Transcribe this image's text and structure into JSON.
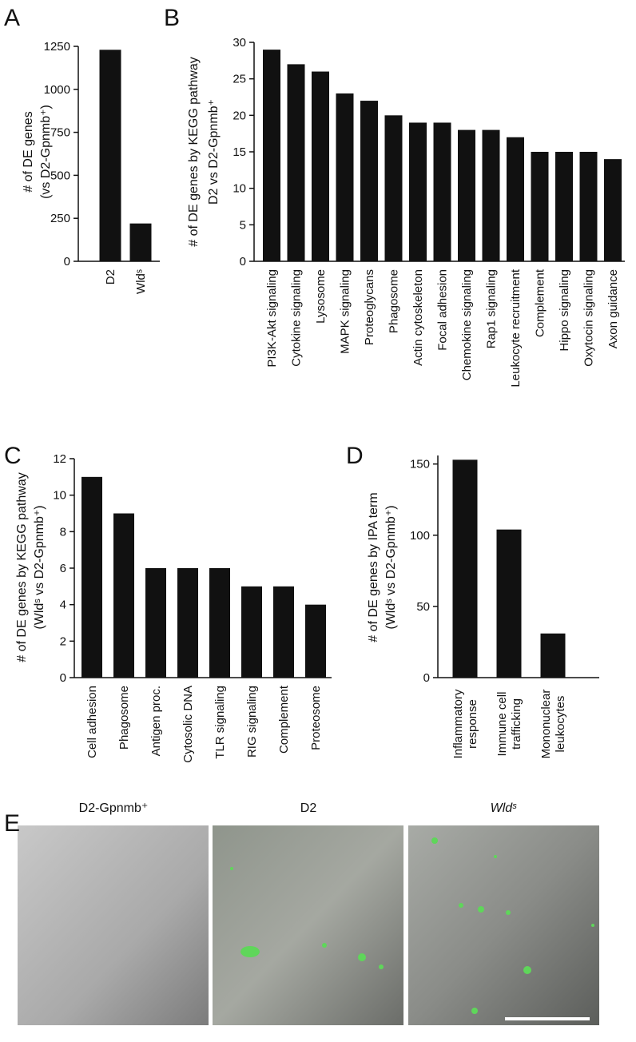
{
  "chart_data": [
    {
      "type": "bar",
      "panel": "A",
      "ylabel": [
        "# of DE genes",
        "(vs D2-Gpnmb⁺)"
      ],
      "categories": [
        [
          "D2"
        ],
        [
          "Wldˢ"
        ]
      ],
      "values": [
        1230,
        220
      ],
      "color": "#111111",
      "ylim": [
        0,
        1250
      ],
      "yticks": [
        0,
        250,
        500,
        750,
        1000,
        1250
      ]
    },
    {
      "type": "bar",
      "panel": "B",
      "ylabel": [
        "# of DE genes by KEGG pathway",
        "D2 vs D2-Gpnmb⁺"
      ],
      "categories": [
        [
          "PI3K-Akt signaling"
        ],
        [
          "Cytokine signaling"
        ],
        [
          "Lysosome"
        ],
        [
          "MAPK signaling"
        ],
        [
          "Proteoglycans"
        ],
        [
          "Phagosome"
        ],
        [
          "Actin cytoskeleton"
        ],
        [
          "Focal adhesion"
        ],
        [
          "Chemokine signaling"
        ],
        [
          "Rap1 signaling"
        ],
        [
          "Leukocyte recruitment"
        ],
        [
          "Complement"
        ],
        [
          "Hippo signaling"
        ],
        [
          "Oxytocin signaling"
        ],
        [
          "Axon guidance"
        ]
      ],
      "values": [
        29,
        27,
        26,
        23,
        22,
        20,
        19,
        19,
        18,
        18,
        17,
        15,
        15,
        15,
        14
      ],
      "color": "#111111",
      "ylim": [
        0,
        30
      ],
      "yticks": [
        0,
        5,
        10,
        15,
        20,
        25,
        30
      ]
    },
    {
      "type": "bar",
      "panel": "C",
      "ylabel": [
        "# of DE genes by KEGG pathway",
        "(Wldˢ vs D2-Gpnmb⁺)"
      ],
      "categories": [
        [
          "Cell adhesion"
        ],
        [
          "Phagosome"
        ],
        [
          "Antigen proc."
        ],
        [
          "Cytosolic DNA"
        ],
        [
          "TLR signaling"
        ],
        [
          "RIG signaling"
        ],
        [
          "Complement"
        ],
        [
          "Proteosome"
        ]
      ],
      "values": [
        11,
        9,
        6,
        6,
        6,
        5,
        5,
        4
      ],
      "color": "#111111",
      "ylim": [
        0,
        12
      ],
      "yticks": [
        0,
        2,
        4,
        6,
        8,
        10,
        12
      ]
    },
    {
      "type": "bar",
      "panel": "D",
      "ylabel": [
        "# of DE genes by IPA term",
        "(Wldˢ vs D2-Gpnmb⁺)"
      ],
      "categories": [
        [
          "Inflammatory",
          "response"
        ],
        [
          "Immune cell",
          "trafficking"
        ],
        [
          "Mononuclear",
          "leukocytes"
        ]
      ],
      "values": [
        153,
        104,
        31
      ],
      "color": "#111111",
      "ylim": [
        0,
        156
      ],
      "yticks": [
        0,
        50,
        100,
        150
      ]
    }
  ],
  "micrographs": {
    "panel": "E",
    "captions": [
      "D2-Gpnmb⁺",
      "D2",
      "Wldˢ"
    ]
  }
}
